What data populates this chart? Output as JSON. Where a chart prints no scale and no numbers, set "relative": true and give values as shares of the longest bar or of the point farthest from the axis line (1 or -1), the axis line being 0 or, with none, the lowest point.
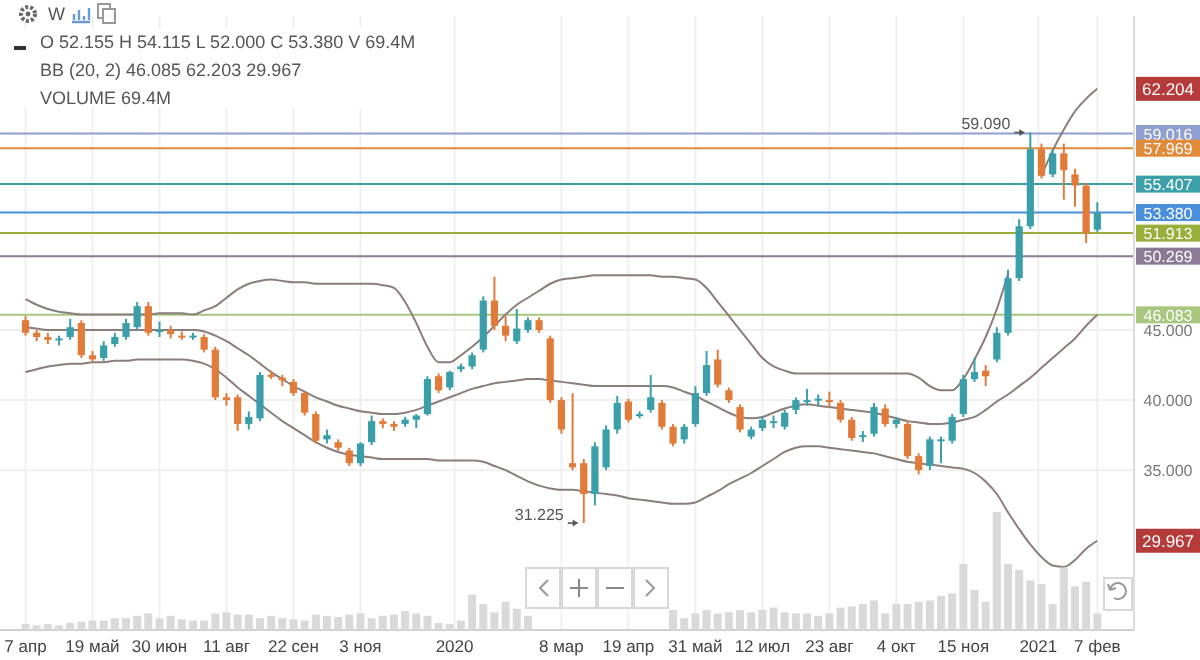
{
  "chart_data": [
    {
      "type": "candlestick",
      "x": [
        "2019-04-07",
        "2019-04-14",
        "2019-04-21",
        "2019-04-28",
        "2019-05-05",
        "2019-05-12",
        "2019-05-19",
        "2019-05-26",
        "2019-06-02",
        "2019-06-09",
        "2019-06-16",
        "2019-06-23",
        "2019-06-30",
        "2019-07-07",
        "2019-07-14",
        "2019-07-21",
        "2019-07-28",
        "2019-08-04",
        "2019-08-11",
        "2019-08-18",
        "2019-08-25",
        "2019-09-01",
        "2019-09-08",
        "2019-09-15",
        "2019-09-22",
        "2019-09-29",
        "2019-10-06",
        "2019-10-13",
        "2019-10-20",
        "2019-10-27",
        "2019-11-03",
        "2019-11-10",
        "2019-11-17",
        "2019-11-24",
        "2019-12-01",
        "2019-12-08",
        "2019-12-15",
        "2019-12-22",
        "2019-12-29",
        "2020-01-05",
        "2020-01-12",
        "2020-01-19",
        "2020-01-26",
        "2020-02-02",
        "2020-02-09",
        "2020-02-16",
        "2020-02-23",
        "2020-03-01",
        "2020-03-08",
        "2020-03-15",
        "2020-03-22",
        "2020-03-29",
        "2020-04-05",
        "2020-04-12",
        "2020-04-19",
        "2020-04-26",
        "2020-05-03",
        "2020-05-10",
        "2020-05-17",
        "2020-05-24",
        "2020-05-31",
        "2020-06-07",
        "2020-06-14",
        "2020-06-21",
        "2020-06-28",
        "2020-07-05",
        "2020-07-12",
        "2020-07-19",
        "2020-07-26",
        "2020-08-02",
        "2020-08-09",
        "2020-08-16",
        "2020-08-23",
        "2020-08-30",
        "2020-09-06",
        "2020-09-13",
        "2020-09-20",
        "2020-09-27",
        "2020-10-04",
        "2020-10-11",
        "2020-10-18",
        "2020-10-25",
        "2020-11-01",
        "2020-11-08",
        "2020-11-15",
        "2020-11-22",
        "2020-11-29",
        "2020-12-06",
        "2020-12-13",
        "2020-12-20",
        "2020-12-27",
        "2021-01-03",
        "2021-01-10",
        "2021-01-17",
        "2021-01-24",
        "2021-01-31",
        "2021-02-07"
      ],
      "ohlc": [
        [
          45.7,
          46.0,
          44.6,
          44.8
        ],
        [
          44.8,
          45.0,
          44.2,
          44.5
        ],
        [
          44.5,
          44.8,
          44.0,
          44.3
        ],
        [
          44.3,
          44.6,
          43.9,
          44.4
        ],
        [
          44.5,
          45.8,
          44.3,
          45.2
        ],
        [
          45.5,
          45.7,
          43.0,
          43.2
        ],
        [
          43.2,
          43.5,
          42.7,
          42.9
        ],
        [
          43.0,
          44.2,
          42.8,
          43.9
        ],
        [
          44.0,
          44.8,
          43.8,
          44.5
        ],
        [
          44.5,
          45.8,
          44.3,
          45.5
        ],
        [
          45.2,
          47.0,
          45.0,
          46.7
        ],
        [
          46.7,
          47.0,
          44.6,
          44.8
        ],
        [
          44.9,
          45.6,
          44.5,
          45.0
        ],
        [
          45.0,
          45.3,
          44.4,
          44.7
        ],
        [
          44.6,
          44.9,
          44.3,
          44.5
        ],
        [
          44.5,
          44.8,
          44.3,
          44.6
        ],
        [
          44.5,
          44.7,
          43.4,
          43.6
        ],
        [
          43.6,
          43.8,
          40.0,
          40.2
        ],
        [
          40.2,
          40.5,
          39.6,
          40.0
        ],
        [
          40.2,
          40.4,
          37.8,
          38.3
        ],
        [
          38.3,
          39.2,
          37.9,
          38.8
        ],
        [
          38.7,
          42.0,
          38.5,
          41.8
        ],
        [
          41.8,
          42.1,
          41.5,
          41.7
        ],
        [
          41.6,
          41.8,
          41.0,
          41.4
        ],
        [
          41.3,
          41.5,
          40.3,
          40.5
        ],
        [
          40.5,
          40.6,
          38.9,
          39.1
        ],
        [
          39.0,
          39.2,
          36.9,
          37.1
        ],
        [
          37.2,
          37.9,
          36.9,
          37.5
        ],
        [
          37.0,
          37.2,
          36.4,
          36.6
        ],
        [
          36.4,
          36.6,
          35.3,
          35.5
        ],
        [
          35.5,
          37.0,
          35.3,
          36.9
        ],
        [
          37.0,
          38.9,
          36.8,
          38.5
        ],
        [
          38.5,
          38.7,
          38.0,
          38.3
        ],
        [
          38.3,
          38.5,
          37.8,
          38.1
        ],
        [
          38.3,
          38.8,
          38.1,
          38.6
        ],
        [
          38.6,
          39.0,
          38.0,
          38.9
        ],
        [
          39.0,
          41.7,
          38.9,
          41.5
        ],
        [
          41.7,
          41.9,
          40.5,
          40.7
        ],
        [
          40.9,
          42.1,
          40.7,
          42.0
        ],
        [
          42.2,
          42.6,
          42.0,
          42.4
        ],
        [
          42.4,
          43.4,
          42.2,
          43.2
        ],
        [
          43.6,
          47.4,
          43.4,
          47.1
        ],
        [
          47.1,
          48.8,
          45.0,
          45.3
        ],
        [
          45.3,
          46.0,
          44.2,
          44.6
        ],
        [
          44.2,
          46.5,
          44.0,
          45.1
        ],
        [
          45.0,
          45.9,
          44.8,
          45.7
        ],
        [
          45.7,
          45.9,
          44.8,
          45.0
        ],
        [
          44.4,
          44.6,
          39.8,
          40.0
        ],
        [
          40.0,
          40.2,
          37.6,
          37.9
        ],
        [
          35.5,
          40.5,
          35.0,
          35.2
        ],
        [
          35.5,
          35.8,
          31.225,
          33.3
        ],
        [
          33.3,
          37.0,
          32.5,
          36.7
        ],
        [
          35.2,
          38.2,
          35.0,
          37.9
        ],
        [
          37.9,
          40.3,
          37.6,
          39.8
        ],
        [
          39.9,
          40.1,
          38.4,
          38.6
        ],
        [
          38.9,
          39.2,
          38.7,
          39.0
        ],
        [
          39.3,
          41.8,
          39.1,
          40.2
        ],
        [
          39.8,
          40.0,
          37.9,
          38.1
        ],
        [
          38.1,
          38.3,
          36.7,
          36.9
        ],
        [
          37.2,
          38.3,
          36.9,
          38.1
        ],
        [
          38.3,
          41.0,
          38.1,
          40.5
        ],
        [
          40.5,
          43.5,
          40.3,
          42.5
        ],
        [
          42.9,
          43.6,
          40.9,
          41.1
        ],
        [
          40.7,
          40.9,
          39.8,
          40.0
        ],
        [
          39.5,
          39.7,
          37.7,
          37.9
        ],
        [
          37.4,
          38.1,
          37.2,
          37.9
        ],
        [
          38.0,
          38.8,
          37.8,
          38.6
        ],
        [
          38.4,
          38.9,
          38.0,
          38.5
        ],
        [
          38.1,
          39.3,
          37.9,
          39.1
        ],
        [
          39.3,
          40.2,
          39.0,
          40.0
        ],
        [
          39.9,
          40.8,
          39.6,
          40.0
        ],
        [
          40.0,
          40.4,
          39.6,
          40.1
        ],
        [
          40.0,
          40.6,
          39.5,
          39.9
        ],
        [
          39.8,
          40.0,
          38.4,
          38.6
        ],
        [
          38.6,
          38.8,
          37.1,
          37.3
        ],
        [
          37.4,
          37.8,
          37.0,
          37.5
        ],
        [
          37.6,
          39.8,
          37.4,
          39.5
        ],
        [
          39.4,
          39.7,
          38.1,
          38.3
        ],
        [
          38.3,
          38.8,
          38.0,
          38.6
        ],
        [
          38.3,
          38.5,
          35.8,
          36.0
        ],
        [
          36.0,
          36.2,
          34.7,
          35.0
        ],
        [
          35.3,
          37.4,
          35.0,
          37.2
        ],
        [
          37.1,
          37.4,
          35.5,
          37.2
        ],
        [
          37.1,
          39.0,
          36.9,
          38.8
        ],
        [
          39.0,
          41.8,
          38.8,
          41.5
        ],
        [
          41.5,
          43.0,
          41.3,
          42.0
        ],
        [
          42.1,
          42.5,
          41.0,
          41.7
        ],
        [
          42.9,
          45.2,
          42.7,
          44.8
        ],
        [
          44.8,
          49.3,
          44.6,
          48.7
        ],
        [
          48.7,
          52.9,
          48.5,
          52.4
        ],
        [
          52.4,
          59.09,
          52.2,
          57.9
        ],
        [
          57.9,
          58.3,
          55.8,
          56.0
        ],
        [
          56.1,
          57.9,
          55.9,
          57.6
        ],
        [
          57.6,
          58.3,
          54.3,
          56.4
        ],
        [
          56.1,
          56.5,
          53.8,
          55.3
        ],
        [
          55.3,
          55.5,
          51.2,
          51.9
        ],
        [
          52.155,
          54.115,
          52.0,
          53.38
        ]
      ],
      "colors": [
        "#e07b3a",
        "#e07b3a",
        "#e07b3a",
        "#3a9fa8",
        "#3a9fa8",
        "#e07b3a",
        "#e07b3a",
        "#3a9fa8",
        "#3a9fa8",
        "#3a9fa8",
        "#3a9fa8",
        "#e07b3a",
        "#3a9fa8",
        "#e07b3a",
        "#e07b3a",
        "#3a9fa8",
        "#e07b3a",
        "#e07b3a",
        "#e07b3a",
        "#e07b3a",
        "#3a9fa8",
        "#3a9fa8",
        "#e07b3a",
        "#e07b3a",
        "#e07b3a",
        "#e07b3a",
        "#e07b3a",
        "#3a9fa8",
        "#e07b3a",
        "#e07b3a",
        "#3a9fa8",
        "#3a9fa8",
        "#e07b3a",
        "#e07b3a",
        "#3a9fa8",
        "#3a9fa8",
        "#3a9fa8",
        "#e07b3a",
        "#3a9fa8",
        "#3a9fa8",
        "#3a9fa8",
        "#3a9fa8",
        "#e07b3a",
        "#e07b3a",
        "#3a9fa8",
        "#3a9fa8",
        "#e07b3a",
        "#e07b3a",
        "#e07b3a",
        "#e07b3a",
        "#e07b3a",
        "#3a9fa8",
        "#3a9fa8",
        "#3a9fa8",
        "#e07b3a",
        "#3a9fa8",
        "#3a9fa8",
        "#e07b3a",
        "#e07b3a",
        "#3a9fa8",
        "#3a9fa8",
        "#3a9fa8",
        "#e07b3a",
        "#e07b3a",
        "#e07b3a",
        "#3a9fa8",
        "#3a9fa8",
        "#3a9fa8",
        "#3a9fa8",
        "#3a9fa8",
        "#3a9fa8",
        "#3a9fa8",
        "#e07b3a",
        "#e07b3a",
        "#e07b3a",
        "#3a9fa8",
        "#3a9fa8",
        "#e07b3a",
        "#3a9fa8",
        "#e07b3a",
        "#e07b3a",
        "#3a9fa8",
        "#3a9fa8",
        "#3a9fa8",
        "#3a9fa8",
        "#3a9fa8",
        "#e07b3a",
        "#3a9fa8",
        "#3a9fa8",
        "#3a9fa8",
        "#3a9fa8",
        "#e07b3a",
        "#3a9fa8",
        "#e07b3a",
        "#e07b3a",
        "#e07b3a",
        "#3a9fa8"
      ],
      "series": [
        {
          "type": "line",
          "color": "#8b7d7b",
          "values": [
            47.2,
            46.8,
            46.5,
            46.3,
            46.2,
            46.1,
            46.1,
            46.1,
            46.1,
            46.1,
            46.1,
            46.1,
            46.2,
            46.2,
            46.2,
            46.1,
            46.4,
            46.7,
            47.3,
            47.9,
            48.3,
            48.5,
            48.6,
            48.5,
            48.4,
            48.4,
            48.3,
            48.3,
            48.3,
            48.3,
            48.3,
            48.3,
            48.2,
            48.0,
            47.0,
            45.5,
            43.8,
            42.7,
            42.7,
            43.2,
            43.8,
            44.5,
            45.3,
            46.1,
            46.8,
            47.3,
            47.8,
            48.3,
            48.6,
            48.7,
            48.8,
            48.9,
            48.9,
            48.9,
            48.9,
            48.9,
            48.9,
            48.8,
            48.8,
            48.7,
            48.6,
            48.0,
            47.0,
            46.0,
            45.0,
            44.0,
            43.0,
            42.4,
            42.1,
            41.9,
            41.9,
            41.9,
            41.9,
            41.9,
            41.9,
            41.9,
            41.9,
            41.9,
            41.9,
            41.9,
            41.6,
            41.0,
            40.7,
            40.7,
            41.5,
            42.9,
            44.5,
            46.5,
            49.0,
            null,
            null,
            56.0,
            57.8,
            59.3,
            60.6,
            61.5,
            62.204
          ]
        },
        {
          "type": "line",
          "color": "#8b7d7b",
          "values": [
            45.2,
            45.1,
            45.0,
            45.0,
            45.0,
            45.0,
            45.0,
            45.0,
            45.0,
            45.0,
            45.0,
            45.0,
            45.0,
            45.0,
            45.0,
            45.0,
            44.9,
            44.6,
            44.2,
            43.7,
            43.2,
            42.6,
            42.0,
            41.5,
            41.0,
            40.6,
            40.2,
            39.9,
            39.6,
            39.4,
            39.2,
            39.1,
            39.0,
            39.0,
            39.1,
            39.3,
            39.6,
            39.9,
            40.2,
            40.5,
            40.8,
            41.0,
            41.2,
            41.3,
            41.4,
            41.5,
            41.5,
            41.4,
            41.3,
            41.2,
            41.1,
            41.0,
            41.0,
            41.0,
            41.0,
            41.0,
            41.0,
            41.0,
            40.9,
            40.6,
            40.3,
            39.9,
            39.5,
            39.1,
            38.8,
            38.7,
            38.8,
            39.1,
            39.4,
            39.6,
            39.7,
            39.6,
            39.5,
            39.4,
            39.3,
            39.2,
            39.1,
            38.9,
            38.7,
            38.5,
            38.4,
            38.3,
            38.3,
            38.4,
            38.6,
            38.8,
            39.3,
            39.9,
            40.4,
            41.0,
            41.6,
            42.3,
            43.0,
            43.7,
            44.4,
            45.3,
            46.083
          ]
        },
        {
          "type": "line",
          "color": "#8b7d7b",
          "values": [
            42.0,
            42.2,
            42.4,
            42.5,
            42.6,
            42.6,
            42.7,
            42.7,
            42.8,
            42.8,
            42.9,
            42.9,
            42.9,
            42.9,
            42.9,
            42.8,
            42.6,
            42.2,
            41.6,
            40.9,
            40.3,
            39.7,
            39.1,
            38.5,
            38.0,
            37.5,
            37.0,
            36.6,
            36.3,
            36.1,
            36.0,
            35.9,
            35.8,
            35.8,
            35.8,
            35.8,
            35.8,
            35.7,
            35.7,
            35.7,
            35.7,
            35.6,
            35.3,
            35.0,
            34.6,
            34.2,
            33.9,
            33.7,
            33.6,
            33.6,
            33.5,
            33.4,
            33.3,
            33.2,
            33.0,
            32.9,
            32.8,
            32.7,
            32.6,
            32.6,
            32.7,
            33.1,
            33.5,
            34.0,
            34.4,
            34.8,
            35.3,
            35.8,
            36.3,
            36.6,
            36.7,
            36.7,
            36.6,
            36.5,
            36.4,
            36.3,
            36.2,
            36.0,
            35.8,
            35.6,
            35.5,
            35.4,
            35.3,
            35.2,
            35.1,
            34.8,
            34.2,
            33.3,
            32.0,
            30.8,
            29.7,
            28.8,
            28.2,
            28.1,
            28.6,
            29.4,
            29.967
          ]
        }
      ],
      "xlim": [
        "2019-03-22",
        "2021-03-02"
      ],
      "xticks": [
        {
          "value": "2019-04-07",
          "label": "7 апр"
        },
        {
          "value": "2019-05-19",
          "label": "19 май"
        },
        {
          "value": "2019-06-30",
          "label": "30 июн"
        },
        {
          "value": "2019-08-11",
          "label": "11 авг"
        },
        {
          "value": "2019-09-22",
          "label": "22 сен"
        },
        {
          "value": "2019-11-03",
          "label": "3 ноя"
        },
        {
          "value": "2020-01-01",
          "label": "2020"
        },
        {
          "value": "2020-03-08",
          "label": "8 мар"
        },
        {
          "value": "2020-04-19",
          "label": "19 апр"
        },
        {
          "value": "2020-05-31",
          "label": "31 май"
        },
        {
          "value": "2020-07-12",
          "label": "12 июл"
        },
        {
          "value": "2020-08-23",
          "label": "23 авг"
        },
        {
          "value": "2020-10-04",
          "label": "4 окт"
        },
        {
          "value": "2020-11-15",
          "label": "15 ноя"
        },
        {
          "value": "2021-01-01",
          "label": "2021"
        },
        {
          "value": "2021-02-07",
          "label": "7 фев"
        }
      ],
      "ylim": [
        23.6,
        67.4
      ],
      "yticks": [
        {
          "value": 35,
          "label": "35.000"
        },
        {
          "value": 40,
          "label": "40.000"
        },
        {
          "value": 45,
          "label": "45.000"
        }
      ],
      "grid": true,
      "ref_lines": [
        {
          "axis": "y",
          "value": 59.016,
          "label": "59.016",
          "color": "#8e9fd0"
        },
        {
          "axis": "y",
          "value": 57.969,
          "label": "57.969",
          "color": "#e08a3a"
        },
        {
          "axis": "y",
          "value": 55.407,
          "label": "55.407",
          "color": "#3a9fa8"
        },
        {
          "axis": "y",
          "value": 53.38,
          "label": "53.380",
          "color": "#4a8fd9"
        },
        {
          "axis": "y",
          "value": 51.913,
          "label": "51.913",
          "color": "#9aae3a"
        },
        {
          "axis": "y",
          "value": 50.269,
          "label": "50.269",
          "color": "#8a7a96"
        },
        {
          "axis": "y",
          "value": 46.083,
          "label": "46.083",
          "color": "#a9c67f"
        }
      ],
      "annotations": [
        "W",
        "O 52.155 H 54.115 L 52.000 C 53.380 V 69.4M",
        "BB (20, 2) 46.085 62.203 29.967",
        "VOLUME 69.4M",
        {
          "text": "59.090",
          "x": "2020-12-27",
          "y": 59.09
        },
        {
          "text": "31.225",
          "x": "2020-03-22",
          "y": 31.225
        },
        {
          "text": "62.204",
          "x": "2021-02-07",
          "y": 62.204
        },
        {
          "text": "29.967",
          "x": "2021-02-07",
          "y": 29.967
        }
      ]
    },
    {
      "type": "bar",
      "relative": true,
      "color": "#d9d9d9",
      "xlim": [
        "2019-03-22",
        "2021-03-02"
      ],
      "x": [
        "2019-04-07",
        "2019-04-14",
        "2019-04-21",
        "2019-04-28",
        "2019-05-05",
        "2019-05-12",
        "2019-05-19",
        "2019-05-26",
        "2019-06-02",
        "2019-06-09",
        "2019-06-16",
        "2019-06-23",
        "2019-06-30",
        "2019-07-07",
        "2019-07-14",
        "2019-07-21",
        "2019-07-28",
        "2019-08-04",
        "2019-08-11",
        "2019-08-18",
        "2019-08-25",
        "2019-09-01",
        "2019-09-08",
        "2019-09-15",
        "2019-09-22",
        "2019-09-29",
        "2019-10-06",
        "2019-10-13",
        "2019-10-20",
        "2019-10-27",
        "2019-11-03",
        "2019-11-10",
        "2019-11-17",
        "2019-11-24",
        "2019-12-01",
        "2019-12-08",
        "2019-12-15",
        "2019-12-22",
        "2019-12-29",
        "2020-01-05",
        "2020-01-12",
        "2020-01-19",
        "2020-01-26",
        "2020-02-02",
        "2020-02-09",
        "2020-02-16",
        "2020-02-23",
        "2020-03-01",
        "2020-03-08",
        "2020-03-15",
        "2020-03-22",
        "2020-03-29",
        "2020-04-05",
        "2020-04-12",
        "2020-04-19",
        "2020-04-26",
        "2020-05-03",
        "2020-05-10",
        "2020-05-17",
        "2020-05-24",
        "2020-05-31",
        "2020-06-07",
        "2020-06-14",
        "2020-06-21",
        "2020-06-28",
        "2020-07-05",
        "2020-07-12",
        "2020-07-19",
        "2020-07-26",
        "2020-08-02",
        "2020-08-09",
        "2020-08-16",
        "2020-08-23",
        "2020-08-30",
        "2020-09-06",
        "2020-09-13",
        "2020-09-20",
        "2020-09-27",
        "2020-10-04",
        "2020-10-11",
        "2020-10-18",
        "2020-10-25",
        "2020-11-01",
        "2020-11-08",
        "2020-11-15",
        "2020-11-22",
        "2020-11-29",
        "2020-12-06",
        "2020-12-13",
        "2020-12-20",
        "2020-12-27",
        "2021-01-03",
        "2021-01-10",
        "2021-01-17",
        "2021-01-24",
        "2021-01-31",
        "2021-02-07"
      ],
      "values": [
        0.05,
        0.04,
        0.05,
        0.04,
        0.06,
        0.07,
        0.08,
        0.08,
        0.1,
        0.1,
        0.12,
        0.14,
        0.1,
        0.12,
        0.09,
        0.08,
        0.08,
        0.14,
        0.15,
        0.13,
        0.13,
        0.1,
        0.12,
        0.1,
        0.09,
        0.08,
        0.13,
        0.12,
        0.11,
        0.13,
        0.14,
        0.1,
        0.12,
        0.13,
        0.16,
        0.14,
        0.12,
        0.06,
        0.05,
        0.08,
        0.3,
        0.22,
        0.15,
        0.24,
        0.18,
        0.12,
        null,
        null,
        null,
        null,
        null,
        null,
        null,
        null,
        null,
        null,
        null,
        null,
        0.17,
        0.1,
        0.14,
        0.17,
        0.14,
        0.15,
        0.17,
        0.15,
        0.17,
        0.19,
        0.15,
        0.14,
        0.14,
        0.12,
        0.14,
        0.19,
        0.2,
        0.22,
        0.25,
        0.14,
        0.22,
        0.22,
        0.24,
        0.25,
        0.29,
        0.31,
        0.56,
        0.34,
        0.24,
        1.0,
        0.56,
        0.51,
        0.42,
        0.39,
        0.22,
        0.53,
        0.37,
        0.41,
        0.14
      ]
    }
  ]
}
